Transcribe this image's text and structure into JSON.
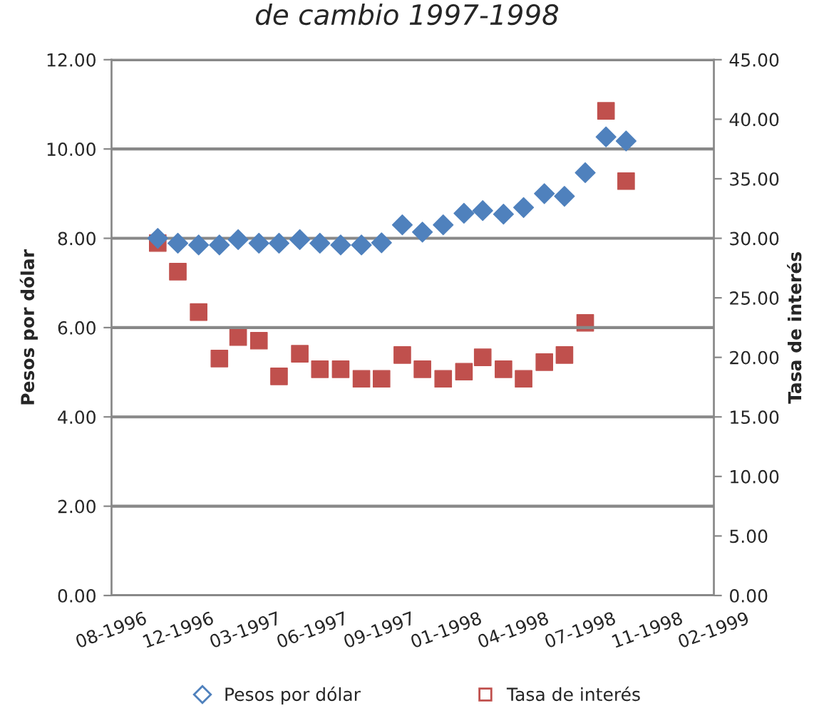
{
  "chart_data": {
    "type": "scatter",
    "title": "de cambio 1997-1998",
    "ylabel": "Pesos por dólar",
    "y2label": "Tasa de interés",
    "x": [
      "1996-11",
      "1996-12",
      "1997-01",
      "1997-02",
      "1997-03",
      "1997-04",
      "1997-05",
      "1997-06",
      "1997-07",
      "1997-08",
      "1997-09",
      "1997-10",
      "1997-11",
      "1997-12",
      "1998-01",
      "1998-02",
      "1998-03",
      "1998-04",
      "1998-05",
      "1998-06",
      "1998-07",
      "1998-08",
      "1998-09",
      "1998-10"
    ],
    "series": [
      {
        "name": "Pesos por dólar",
        "color": "#4f81bd",
        "marker": "diamond",
        "values": [
          8.0,
          7.89,
          7.85,
          7.85,
          7.97,
          7.89,
          7.89,
          7.97,
          7.89,
          7.85,
          7.85,
          7.9,
          8.3,
          8.14,
          8.3,
          8.56,
          8.62,
          8.54,
          8.69,
          9.0,
          8.94,
          9.47,
          10.27,
          10.18
        ]
      },
      {
        "name": "Tasa de interés",
        "color": "#c0504d",
        "marker": "square",
        "axis": "y2",
        "values": [
          29.6,
          27.2,
          23.8,
          19.9,
          21.7,
          21.4,
          18.4,
          20.3,
          19.0,
          19.0,
          18.2,
          18.2,
          20.2,
          19.0,
          18.2,
          18.8,
          20.0,
          19.0,
          18.2,
          19.6,
          20.2,
          22.9,
          40.7,
          34.8
        ]
      }
    ],
    "xlim": [
      "1996-08-24",
      "1999-02-09"
    ],
    "xticks": [
      {
        "value": "1996-08-24",
        "label": "08-1996"
      },
      {
        "value": "1996-12-02",
        "label": "12-1996"
      },
      {
        "value": "1997-03-12",
        "label": "03-1997"
      },
      {
        "value": "1997-06-20",
        "label": "06-1997"
      },
      {
        "value": "1997-09-28",
        "label": "09-1997"
      },
      {
        "value": "1998-01-06",
        "label": "01-1998"
      },
      {
        "value": "1998-04-16",
        "label": "04-1998"
      },
      {
        "value": "1998-07-25",
        "label": "07-1998"
      },
      {
        "value": "1998-11-02",
        "label": "11-1998"
      },
      {
        "value": "1999-02-09",
        "label": "02-1999"
      }
    ],
    "ylim": [
      0,
      12
    ],
    "yticks": [
      {
        "value": 0,
        "label": "0.00"
      },
      {
        "value": 2,
        "label": "2.00"
      },
      {
        "value": 4,
        "label": "4.00"
      },
      {
        "value": 6,
        "label": "6.00"
      },
      {
        "value": 8,
        "label": "8.00"
      },
      {
        "value": 10,
        "label": "10.00"
      },
      {
        "value": 12,
        "label": "12.00"
      }
    ],
    "y2lim": [
      0,
      45
    ],
    "y2ticks": [
      {
        "value": 0,
        "label": "0.00"
      },
      {
        "value": 5,
        "label": "5.00"
      },
      {
        "value": 10,
        "label": "10.00"
      },
      {
        "value": 15,
        "label": "15.00"
      },
      {
        "value": 20,
        "label": "20.00"
      },
      {
        "value": 25,
        "label": "25.00"
      },
      {
        "value": 30,
        "label": "30.00"
      },
      {
        "value": 35,
        "label": "35.00"
      },
      {
        "value": 40,
        "label": "40.00"
      },
      {
        "value": 45,
        "label": "45.00"
      }
    ],
    "grid": "y",
    "legend": "bottom"
  }
}
